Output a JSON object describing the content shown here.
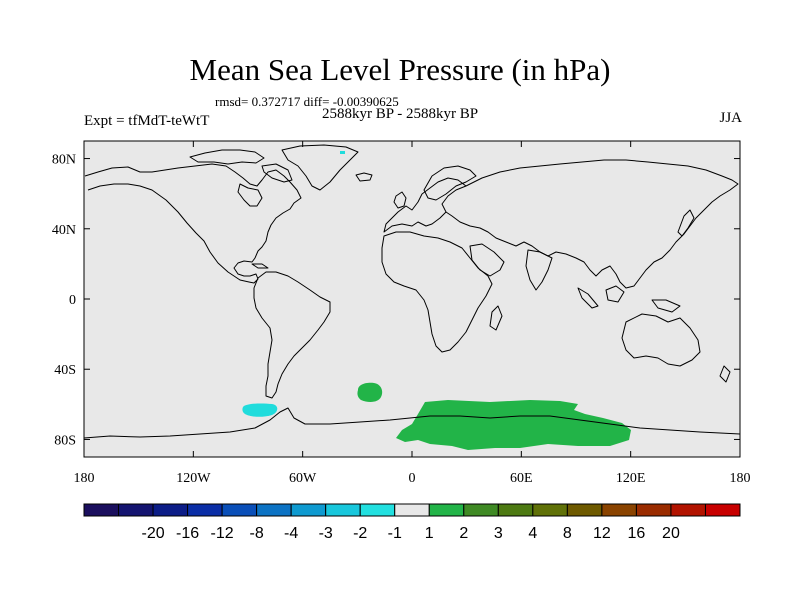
{
  "map": {
    "title": "Mean Sea Level Pressure (in hPa)",
    "stats": "rmsd= 0.372717 diff= -0.00390625",
    "subtitle": "2588kyr BP - 2588kyr BP",
    "experiment": "Expt = tfMdT-teWtT",
    "season": "JJA",
    "background_color": "#e8e8e8",
    "coastline_color": "#000000",
    "lon_ticks": [
      {
        "value": -180,
        "label": "180"
      },
      {
        "value": -120,
        "label": "120W"
      },
      {
        "value": -60,
        "label": "60W"
      },
      {
        "value": 0,
        "label": "0"
      },
      {
        "value": 60,
        "label": "60E"
      },
      {
        "value": 120,
        "label": "120E"
      },
      {
        "value": 180,
        "label": "180"
      }
    ],
    "lat_ticks": [
      {
        "value": 80,
        "label": "80N"
      },
      {
        "value": 40,
        "label": "40N"
      },
      {
        "value": 0,
        "label": "0"
      },
      {
        "value": -40,
        "label": "40S"
      },
      {
        "value": -80,
        "label": "80S"
      }
    ],
    "anomalies": [
      {
        "name": "weddell-sea-anomaly",
        "level": "-1 to -2",
        "color": "#20dcdc",
        "lon": -80,
        "lat": -66
      },
      {
        "name": "south-atlantic-anomaly",
        "level": "1 to 2",
        "color": "#22b448",
        "lon": -23,
        "lat": -57
      },
      {
        "name": "antarctic-anomaly",
        "level": "1 to 2",
        "color": "#22b448",
        "lon": 60,
        "lat": -73
      },
      {
        "name": "arctic-anomaly",
        "level": "-1 to -2",
        "color": "#20dcdc",
        "lon": -43,
        "lat": 83
      }
    ]
  },
  "colorbar": {
    "colors": [
      "#1b0f5e",
      "#141470",
      "#0c1d87",
      "#0a2ea6",
      "#0a4fb8",
      "#0c73c4",
      "#0e9ad0",
      "#18c7dc",
      "#22e0e0",
      "#e8e8e8",
      "#22b448",
      "#3f8a24",
      "#4d7a12",
      "#607108",
      "#6e5a00",
      "#8a4300",
      "#9a2c00",
      "#b21300",
      "#c80000"
    ],
    "labels": [
      "-20",
      "-16",
      "-12",
      "-8",
      "-4",
      "-3",
      "-2",
      "-1",
      "1",
      "2",
      "3",
      "4",
      "8",
      "12",
      "16",
      "20"
    ]
  }
}
